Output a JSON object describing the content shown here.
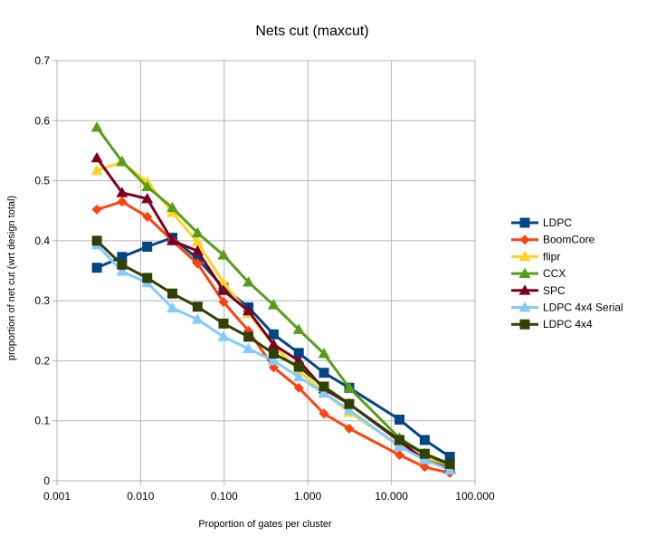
{
  "chart_data": {
    "type": "line",
    "title": "Nets cut (maxcut)",
    "xlabel": "Proportion of gates per cluster",
    "ylabel": "proportion of net cut (wrt design total)",
    "x_scale": "log",
    "xlim": [
      0.001,
      100
    ],
    "ylim": [
      0,
      0.7
    ],
    "x_ticks": [
      "0.001",
      "0.010",
      "0.100",
      "1.000",
      "10.000",
      "100.000"
    ],
    "y_ticks": [
      "0",
      "0.1",
      "0.2",
      "0.3",
      "0.4",
      "0.5",
      "0.6",
      "0.7"
    ],
    "grid": "horizontal+vertical",
    "legend_position": "right",
    "x": [
      0.003,
      0.006,
      0.012,
      0.024,
      0.048,
      0.098,
      0.195,
      0.39,
      0.78,
      1.56,
      3.13,
      12.5,
      25,
      50
    ],
    "series": [
      {
        "name": "LDPC",
        "color": "#004586",
        "marker": "square",
        "x": [
          0.003,
          0.006,
          0.012,
          0.024,
          0.048,
          0.098,
          0.195,
          0.39,
          0.78,
          1.56,
          3.13,
          12.5,
          25,
          50
        ],
        "values": [
          0.355,
          0.373,
          0.39,
          0.405,
          0.37,
          0.322,
          0.289,
          0.244,
          0.213,
          0.18,
          0.155,
          0.102,
          0.068,
          0.04
        ]
      },
      {
        "name": "BoomCore",
        "color": "#ff420e",
        "marker": "diamond",
        "x": [
          0.003,
          0.006,
          0.012,
          0.024,
          0.048,
          0.098,
          0.195,
          0.39,
          0.78,
          1.56,
          3.13,
          12.5,
          25,
          50
        ],
        "values": [
          0.452,
          0.465,
          0.44,
          0.4,
          0.362,
          0.298,
          0.25,
          0.189,
          0.155,
          0.112,
          0.087,
          0.043,
          0.023,
          0.013
        ]
      },
      {
        "name": "flipr",
        "color": "#ffd320",
        "marker": "triangle",
        "x": [
          0.003,
          0.006,
          0.012,
          0.024,
          0.048,
          0.098,
          0.195,
          0.39,
          0.78,
          1.56,
          3.13,
          12.5,
          25,
          50
        ],
        "values": [
          0.517,
          0.531,
          0.498,
          0.447,
          0.398,
          0.33,
          0.279,
          0.226,
          0.183,
          0.147,
          0.114,
          0.059,
          0.04,
          0.021
        ]
      },
      {
        "name": "CCX",
        "color": "#579d1c",
        "marker": "triangle",
        "x": [
          0.003,
          0.006,
          0.012,
          0.024,
          0.048,
          0.098,
          0.195,
          0.39,
          0.78,
          1.56,
          3.13,
          12.5,
          25,
          50
        ],
        "values": [
          0.589,
          0.532,
          0.49,
          0.455,
          0.413,
          0.376,
          0.331,
          0.293,
          0.252,
          0.212,
          0.155,
          0.071,
          0.045,
          0.025
        ]
      },
      {
        "name": "SPC",
        "color": "#7e0021",
        "marker": "triangle",
        "x": [
          0.003,
          0.006,
          0.012,
          0.024,
          0.048,
          0.098,
          0.195,
          0.39,
          0.78,
          1.56,
          3.13,
          12.5,
          25,
          50
        ],
        "values": [
          0.538,
          0.48,
          0.47,
          0.4,
          0.383,
          0.317,
          0.283,
          0.227,
          0.2,
          0.153,
          0.128,
          0.066,
          0.035,
          0.02
        ]
      },
      {
        "name": "LDPC 4x4 Serial",
        "color": "#83caff",
        "marker": "triangle",
        "x": [
          0.003,
          0.006,
          0.012,
          0.024,
          0.048,
          0.098,
          0.195,
          0.39,
          0.78,
          1.56,
          3.13,
          12.5,
          25,
          50
        ],
        "values": [
          0.393,
          0.349,
          0.33,
          0.288,
          0.269,
          0.24,
          0.22,
          0.2,
          0.173,
          0.146,
          0.118,
          0.057,
          0.035,
          0.018
        ]
      },
      {
        "name": "LDPC 4x4",
        "color": "#314004",
        "marker": "square",
        "x": [
          0.003,
          0.006,
          0.012,
          0.024,
          0.048,
          0.098,
          0.195,
          0.39,
          0.78,
          1.56,
          3.13,
          12.5,
          25,
          50
        ],
        "values": [
          0.4,
          0.36,
          0.338,
          0.312,
          0.29,
          0.262,
          0.24,
          0.212,
          0.19,
          0.157,
          0.128,
          0.068,
          0.045,
          0.028
        ]
      }
    ]
  }
}
